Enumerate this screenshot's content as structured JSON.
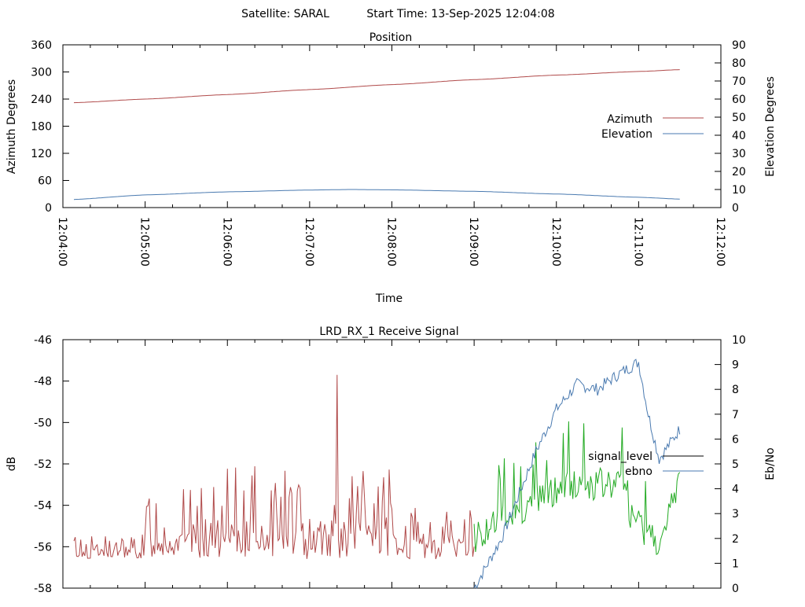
{
  "header": {
    "satellite_label": "Satellite: SARAL",
    "start_time_label": "Start Time: 13-Sep-2025 12:04:08"
  },
  "chart_data": [
    {
      "type": "line",
      "title": "Position",
      "xlabel": "Time",
      "ylabel": "Azimuth Degrees",
      "y2label": "Elevation Degrees",
      "x_ticks": [
        "12:04:00",
        "12:05:00",
        "12:06:00",
        "12:07:00",
        "12:08:00",
        "12:09:00",
        "12:10:00",
        "12:11:00",
        "12:12:00"
      ],
      "xlim": [
        "12:04:00",
        "12:12:00"
      ],
      "ylim": [
        0,
        360
      ],
      "y_ticks": [
        0,
        60,
        120,
        180,
        240,
        300,
        360
      ],
      "y2lim": [
        0,
        90
      ],
      "y2_ticks": [
        0,
        10,
        20,
        30,
        40,
        50,
        60,
        70,
        80,
        90
      ],
      "legend_position": "right",
      "grid": false,
      "series": [
        {
          "name": "Azimuth",
          "axis": "y1",
          "color": "#b04a4a",
          "x": [
            "12:04:08",
            "12:05:00",
            "12:06:00",
            "12:07:00",
            "12:08:00",
            "12:09:00",
            "12:10:00",
            "12:11:00",
            "12:11:30"
          ],
          "values": [
            232,
            240,
            250,
            261,
            272,
            283,
            293,
            301,
            305
          ]
        },
        {
          "name": "Elevation",
          "axis": "y2",
          "color": "#4a7ab0",
          "x": [
            "12:04:08",
            "12:05:00",
            "12:06:00",
            "12:07:00",
            "12:07:30",
            "12:08:00",
            "12:09:00",
            "12:10:00",
            "12:11:00",
            "12:11:30"
          ],
          "values": [
            4.5,
            7,
            8.7,
            9.7,
            10,
            9.8,
            9,
            7.5,
            5.7,
            4.7
          ]
        }
      ]
    },
    {
      "type": "line",
      "title": "LRD_RX_1 Receive Signal",
      "ylabel": "dB",
      "y2label": "Eb/No",
      "ylim": [
        -58,
        -46
      ],
      "y_ticks": [
        -58,
        -56,
        -54,
        -52,
        -50,
        -48,
        -46
      ],
      "y2lim": [
        0,
        10
      ],
      "y2_ticks": [
        0,
        1,
        2,
        3,
        4,
        5,
        6,
        7,
        8,
        9,
        10
      ],
      "xlim": [
        "12:04:00",
        "12:12:00"
      ],
      "legend_position": "right",
      "grid": false,
      "series": [
        {
          "name": "signal_level",
          "axis": "y1",
          "legend_color": "#000000",
          "segments": [
            {
              "color": "#b04a4a",
              "x_range": [
                "12:04:08",
                "12:09:00"
              ]
            },
            {
              "color": "#22aa22",
              "x_range": [
                "12:09:00",
                "12:11:30"
              ]
            }
          ],
          "approx_baseline": -56.6,
          "approx_peak": -47.7
        },
        {
          "name": "ebno",
          "axis": "y2",
          "color": "#4a7ab0",
          "x": [
            "12:09:00",
            "12:09:20",
            "12:09:45",
            "12:10:00",
            "12:10:15",
            "12:10:30",
            "12:10:45",
            "12:11:00",
            "12:11:07",
            "12:11:15",
            "12:11:30"
          ],
          "values": [
            0,
            2,
            5.5,
            7.2,
            8.2,
            8.0,
            8.6,
            9.1,
            7.0,
            5.2,
            6.4
          ]
        }
      ]
    }
  ]
}
